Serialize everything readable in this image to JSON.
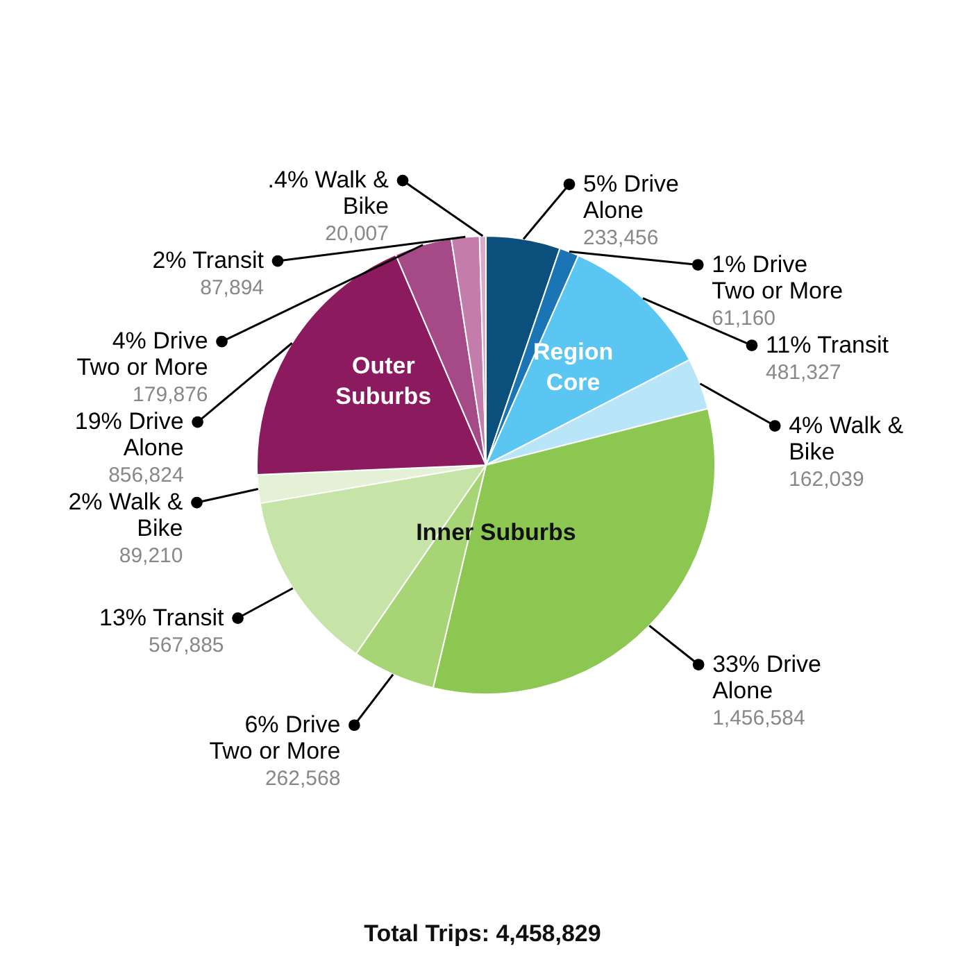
{
  "chart_data": {
    "type": "pie",
    "categories": [
      "5% Drive Alone",
      "1% Drive Two or More",
      "11% Transit",
      "4% Walk & Bike",
      "33% Drive Alone",
      "6% Drive Two or More",
      "13% Transit",
      "2% Walk & Bike",
      "19% Drive Alone",
      "4% Drive Two or More",
      "2% Transit",
      ".4% Walk & Bike"
    ],
    "values": [
      233456,
      61160,
      481327,
      162039,
      1456584,
      262568,
      567885,
      89210,
      856824,
      179876,
      87894,
      20007
    ],
    "colors": [
      "#0b4f7c",
      "#1b75b4",
      "#5cc6f2",
      "#b9e5f9",
      "#8cc751",
      "#a7d576",
      "#c6e3a8",
      "#e4f1d7",
      "#8b1a5e",
      "#a64a87",
      "#c47dab",
      "#dba9ca"
    ],
    "value_labels": [
      "233,456",
      "61,160",
      "481,327",
      "162,039",
      "1,456,584",
      "262,568",
      "567,885",
      "89,210",
      "856,824",
      "179,876",
      "87,894",
      "20,007"
    ],
    "annotations": [
      "Region Core",
      "Inner Suburbs",
      "Outer Suburbs",
      "Total Trips: 4,458,829"
    ]
  }
}
